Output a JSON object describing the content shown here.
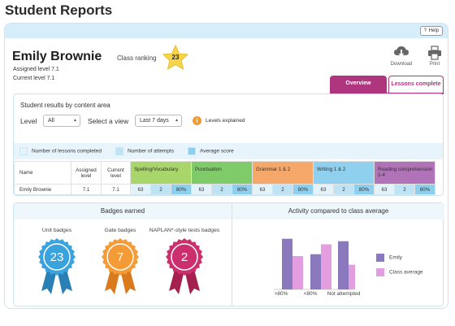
{
  "page": {
    "title": "Student Reports"
  },
  "help": {
    "label": "Help"
  },
  "student": {
    "name": "Emily Brownie",
    "assigned_level": "Assigned level 7.1",
    "current_level": "Current level 7.1",
    "ranking_label": "Class ranking",
    "ranking_value": "23"
  },
  "toolbar": {
    "download": "Download",
    "print": "Print"
  },
  "tabs": {
    "overview": "Overview",
    "lessons_complete": "Lessons complete"
  },
  "results": {
    "title": "Student results by content area",
    "level_label": "Level",
    "level_value": "All",
    "view_label": "Select a view",
    "view_value": "Last 7 days",
    "levels_explained": "Levels explained",
    "legend": {
      "lessons": "Number of lessons completed",
      "attempts": "Number of attempts",
      "average": "Average score"
    },
    "headers": {
      "name": "Name",
      "assigned": "Assigned level",
      "current": "Current level"
    },
    "areas": [
      {
        "name": "Spelling/Vocabulary",
        "color": "#a9d66b"
      },
      {
        "name": "Punctuation",
        "color": "#7fcb6a"
      },
      {
        "name": "Grammar 1 & 2",
        "color": "#f6a86a"
      },
      {
        "name": "Writing 1 & 2",
        "color": "#8fd0ee"
      },
      {
        "name": "Reading comprehension 1-4",
        "color": "#b073b7"
      }
    ],
    "row": {
      "name": "Emily Brownie",
      "assigned": "7.1",
      "current": "7.1",
      "values": [
        [
          "63",
          "2",
          "80%"
        ],
        [
          "63",
          "2",
          "80%"
        ],
        [
          "63",
          "2",
          "80%"
        ],
        [
          "63",
          "2",
          "80%"
        ],
        [
          "63",
          "2",
          "80%"
        ]
      ]
    }
  },
  "badges": {
    "title": "Badges earned",
    "items": [
      {
        "label": "Unit badges",
        "value": "23",
        "color": "#3aa3dd",
        "dark": "#2a7fb5"
      },
      {
        "label": "Gate badges",
        "value": "7",
        "color": "#f49a36",
        "dark": "#d87a1d"
      },
      {
        "label": "NAPLAN*-style tests badges",
        "value": "2",
        "color": "#cc2f6e",
        "dark": "#a3204f"
      }
    ]
  },
  "activity": {
    "title": "Activity compared to class average",
    "legend_emily": "Emily",
    "legend_class": "Class average",
    "colors": {
      "emily": "#8a79bd",
      "class": "#e39ee0"
    }
  },
  "chart_data": {
    "type": "bar",
    "title": "Activity compared to class average",
    "categories": [
      ">80%",
      "<80%",
      "Not attempted"
    ],
    "series": [
      {
        "name": "Emily",
        "values": [
          82,
          57,
          78
        ]
      },
      {
        "name": "Class average",
        "values": [
          54,
          73,
          40
        ]
      }
    ],
    "ylim": [
      0,
      100
    ],
    "grid": false,
    "legend": "right"
  }
}
